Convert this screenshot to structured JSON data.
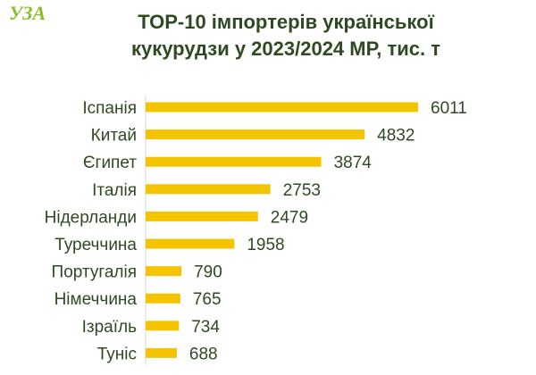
{
  "brand": {
    "logo_text": "УЗА",
    "logo_color": "#8bbf2a"
  },
  "chart_data": {
    "type": "bar",
    "orientation": "horizontal",
    "title_lines": [
      "ТОР-10 імпортерів української",
      "кукурудзи у 2023/2024 МР, тис. т"
    ],
    "categories": [
      "Іспанія",
      "Китай",
      "Єгипет",
      "Італія",
      "Нідерланди",
      "Туреччина",
      "Португалія",
      "Німеччина",
      "Ізраїль",
      "Туніс"
    ],
    "values": [
      6011,
      4832,
      3874,
      2753,
      2479,
      1958,
      790,
      765,
      734,
      688
    ],
    "value_labels": [
      "6011",
      "4832",
      "3874",
      "2753",
      "2479",
      "1958",
      "790",
      "765",
      "734",
      "688"
    ],
    "xlabel": "",
    "ylabel": "",
    "xlim": [
      0,
      6011
    ],
    "grid": false,
    "legend": "none",
    "colors": {
      "bar": "#f5c400",
      "text": "#2f4a22"
    }
  }
}
